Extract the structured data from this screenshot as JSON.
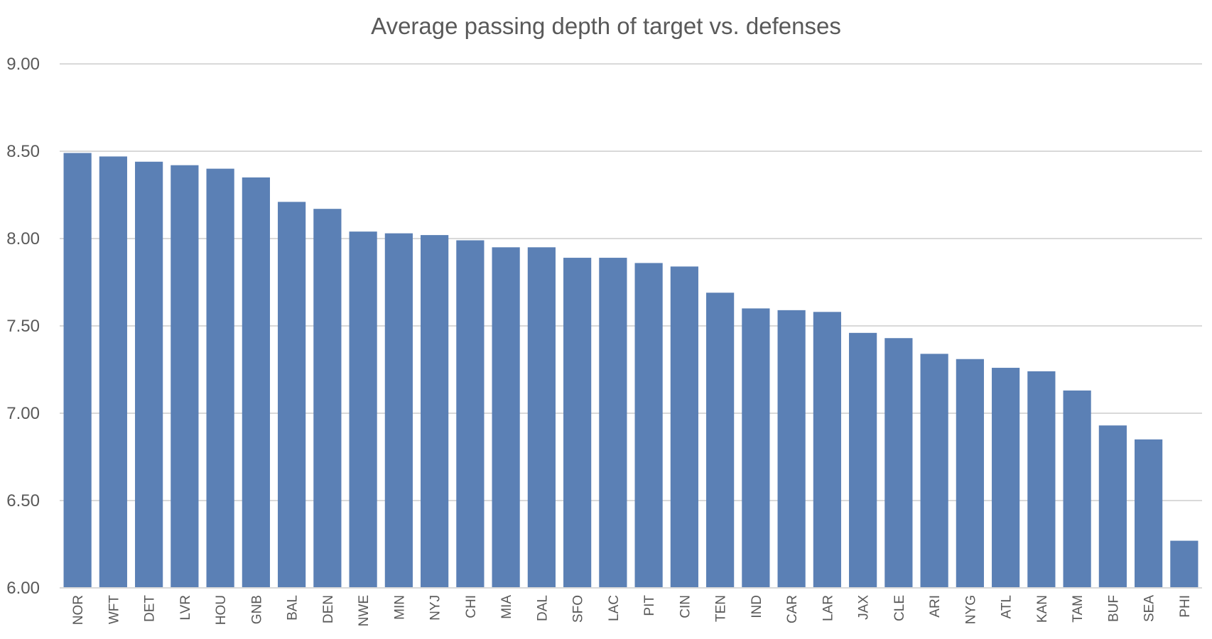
{
  "chart_data": {
    "type": "bar",
    "title": "Average passing depth of target vs. defenses",
    "xlabel": "",
    "ylabel": "",
    "ylim": [
      6.0,
      9.0
    ],
    "yticks": [
      6.0,
      6.5,
      7.0,
      7.5,
      8.0,
      8.5,
      9.0
    ],
    "ytick_labels": [
      "6.00",
      "6.50",
      "7.00",
      "7.50",
      "8.00",
      "8.50",
      "9.00"
    ],
    "grid": true,
    "legend": "none",
    "bar_color": "#5b80b5",
    "categories": [
      "NOR",
      "WFT",
      "DET",
      "LVR",
      "HOU",
      "GNB",
      "BAL",
      "DEN",
      "NWE",
      "MIN",
      "NYJ",
      "CHI",
      "MIA",
      "DAL",
      "SFO",
      "LAC",
      "PIT",
      "CIN",
      "TEN",
      "IND",
      "CAR",
      "LAR",
      "JAX",
      "CLE",
      "ARI",
      "NYG",
      "ATL",
      "KAN",
      "TAM",
      "BUF",
      "SEA",
      "PHI"
    ],
    "values": [
      8.49,
      8.47,
      8.44,
      8.42,
      8.4,
      8.35,
      8.21,
      8.17,
      8.04,
      8.03,
      8.02,
      7.99,
      7.95,
      7.95,
      7.89,
      7.89,
      7.86,
      7.84,
      7.69,
      7.6,
      7.59,
      7.58,
      7.46,
      7.43,
      7.34,
      7.31,
      7.26,
      7.24,
      7.13,
      6.93,
      6.85,
      6.27
    ]
  }
}
